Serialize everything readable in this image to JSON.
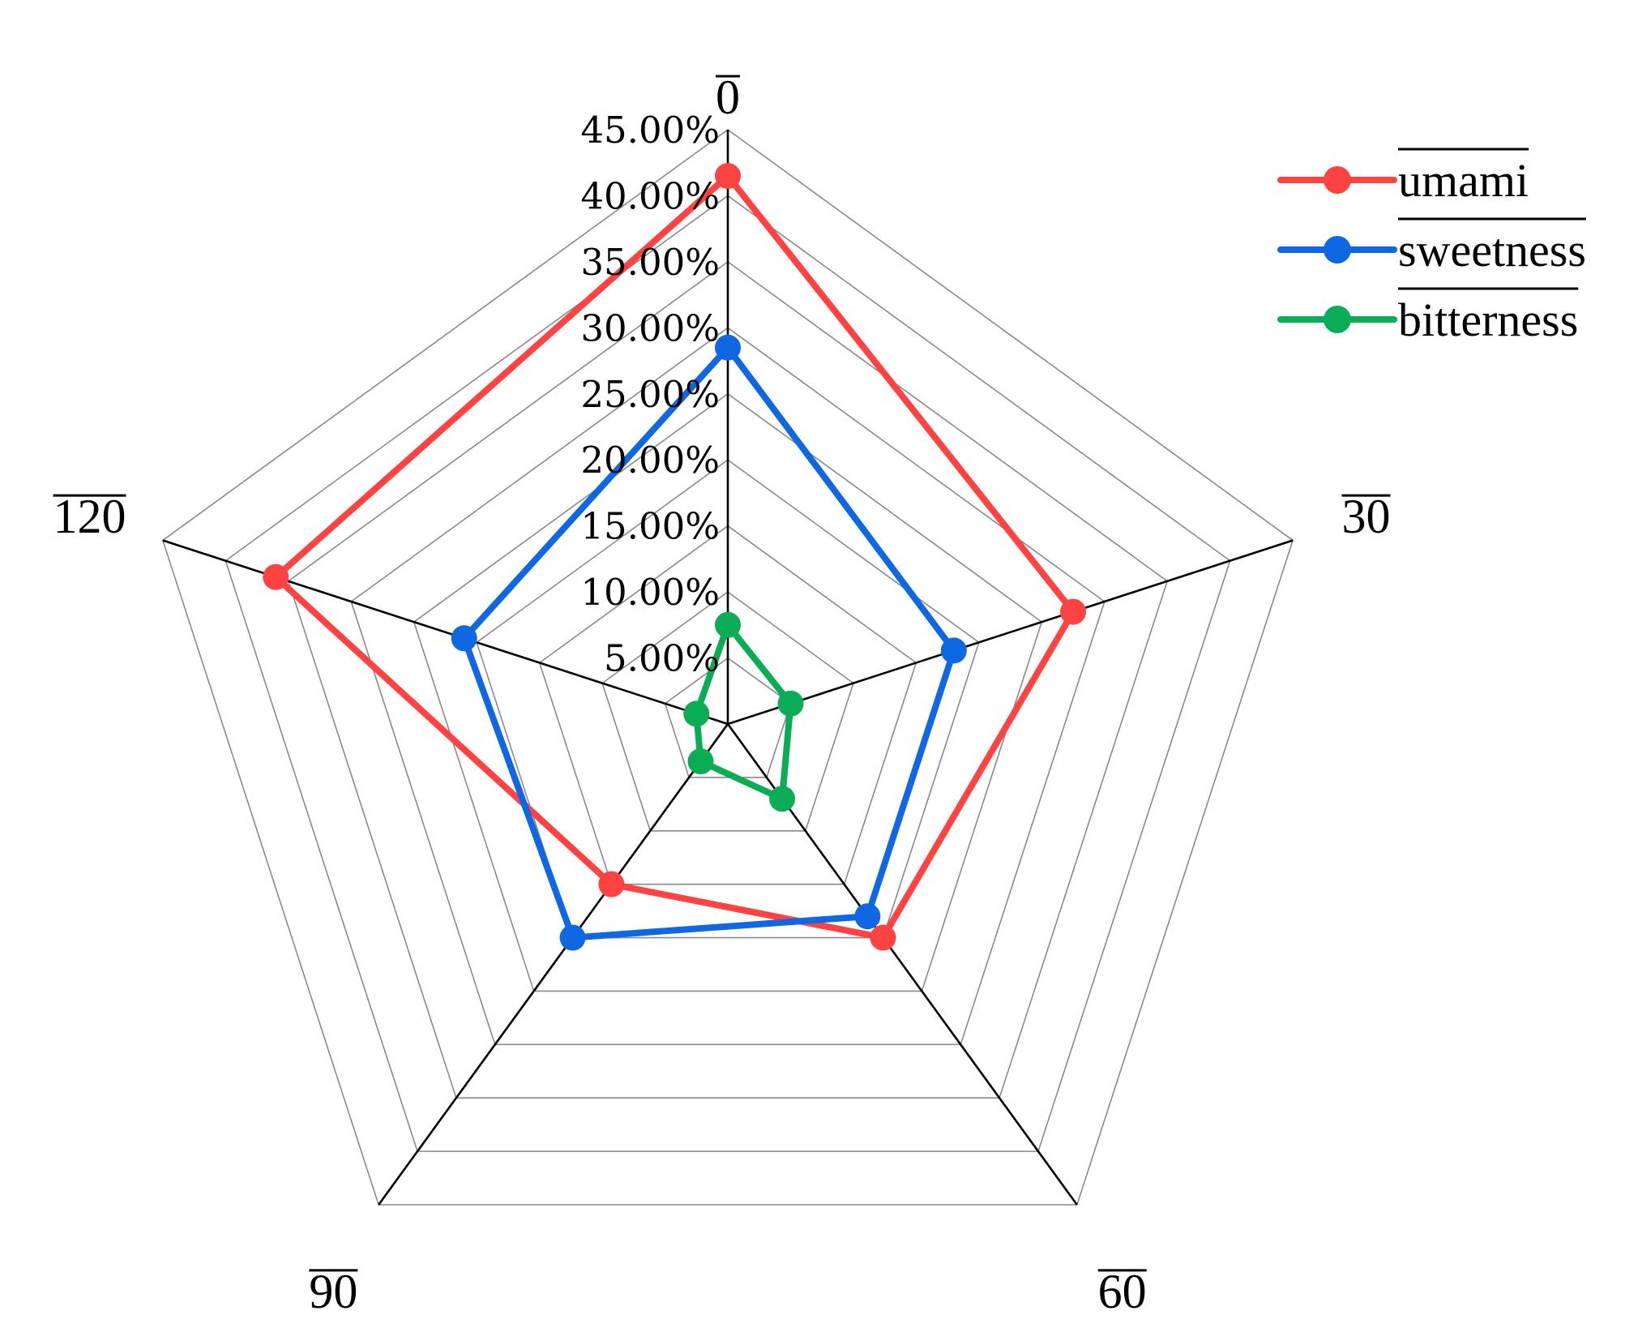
{
  "chart_data": {
    "type": "radar",
    "categories": [
      "0",
      "30",
      "60",
      "90",
      "120"
    ],
    "rlim": [
      0,
      45
    ],
    "ticks": [
      5,
      10,
      15,
      20,
      25,
      30,
      35,
      40,
      45
    ],
    "tick_labels": [
      "5.00%",
      "10.00%",
      "15.00%",
      "20.00%",
      "25.00%",
      "30.00%",
      "35.00%",
      "40.00%",
      "45.00%"
    ],
    "grid": true,
    "legend_position": "top-right",
    "series": [
      {
        "name": "umami",
        "color": "#ff4242",
        "values": [
          41.5,
          27.5,
          20.0,
          15.0,
          36.0
        ]
      },
      {
        "name": "sweetness",
        "color": "#0f67e2",
        "values": [
          28.5,
          18.0,
          18.0,
          20.0,
          21.0
        ]
      },
      {
        "name": "bitterness",
        "color": "#0aad55",
        "values": [
          7.5,
          5.0,
          7.0,
          3.5,
          2.5
        ]
      }
    ]
  }
}
